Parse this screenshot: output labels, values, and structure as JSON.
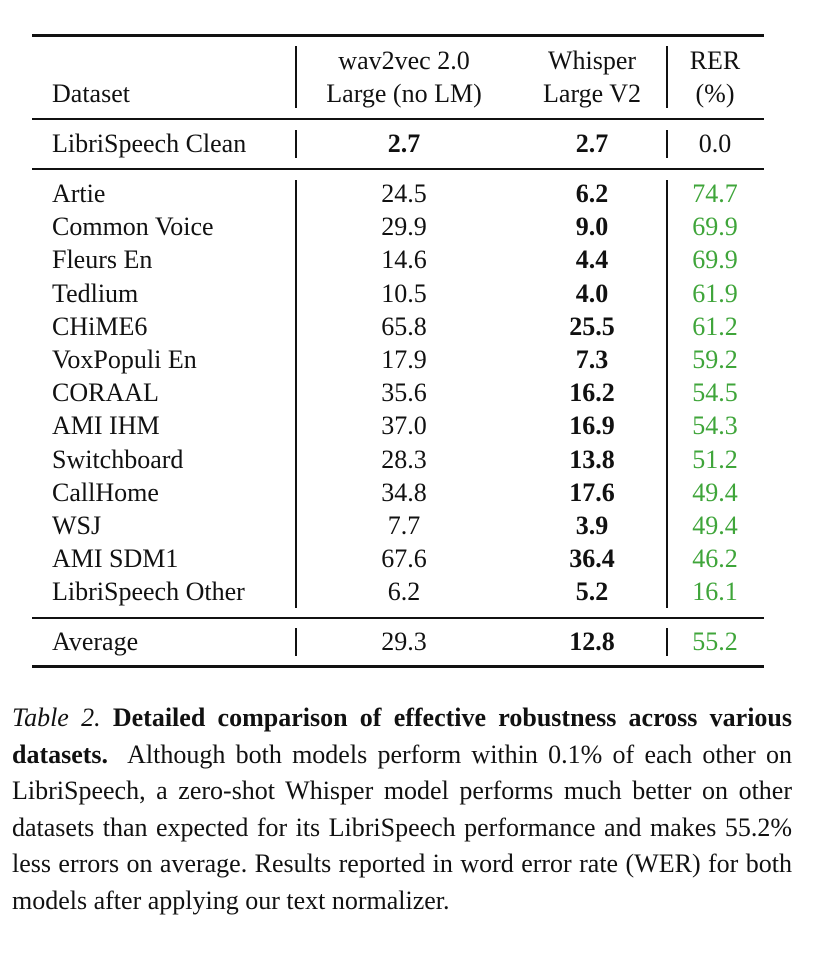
{
  "header": {
    "dataset": "Dataset",
    "w2v_line1": "wav2vec 2.0",
    "w2v_line2": "Large (no LM)",
    "wh_line1": "Whisper",
    "wh_line2": "Large V2",
    "rer_line1": "RER",
    "rer_line2": "(%)"
  },
  "clean": {
    "dataset": "LibriSpeech Clean",
    "w2v": "2.7",
    "wh": "2.7",
    "rer": "0.0"
  },
  "rows": [
    {
      "dataset": "Artie",
      "w2v": "24.5",
      "wh": "6.2",
      "rer": "74.7"
    },
    {
      "dataset": "Common Voice",
      "w2v": "29.9",
      "wh": "9.0",
      "rer": "69.9"
    },
    {
      "dataset": "Fleurs En",
      "w2v": "14.6",
      "wh": "4.4",
      "rer": "69.9"
    },
    {
      "dataset": "Tedlium",
      "w2v": "10.5",
      "wh": "4.0",
      "rer": "61.9"
    },
    {
      "dataset": "CHiME6",
      "w2v": "65.8",
      "wh": "25.5",
      "rer": "61.2"
    },
    {
      "dataset": "VoxPopuli En",
      "w2v": "17.9",
      "wh": "7.3",
      "rer": "59.2"
    },
    {
      "dataset": "CORAAL",
      "w2v": "35.6",
      "wh": "16.2",
      "rer": "54.5"
    },
    {
      "dataset": "AMI IHM",
      "w2v": "37.0",
      "wh": "16.9",
      "rer": "54.3"
    },
    {
      "dataset": "Switchboard",
      "w2v": "28.3",
      "wh": "13.8",
      "rer": "51.2"
    },
    {
      "dataset": "CallHome",
      "w2v": "34.8",
      "wh": "17.6",
      "rer": "49.4"
    },
    {
      "dataset": "WSJ",
      "w2v": "7.7",
      "wh": "3.9",
      "rer": "49.4"
    },
    {
      "dataset": "AMI SDM1",
      "w2v": "67.6",
      "wh": "36.4",
      "rer": "46.2"
    },
    {
      "dataset": "LibriSpeech Other",
      "w2v": "6.2",
      "wh": "5.2",
      "rer": "16.1"
    }
  ],
  "average": {
    "dataset": "Average",
    "w2v": "29.3",
    "wh": "12.8",
    "rer": "55.2"
  },
  "caption": {
    "label": "Table 2.",
    "title": "Detailed comparison of effective robustness across various datasets.",
    "body": "Although both models perform within 0.1% of each other on LibriSpeech, a zero-shot Whisper model performs much better on other datasets than expected for its LibriSpeech performance and makes 55.2% less errors on average. Results reported in word error rate (WER) for both models after applying our text normalizer."
  },
  "colors": {
    "rer_green": "#3fa53a",
    "text": "#111111"
  }
}
